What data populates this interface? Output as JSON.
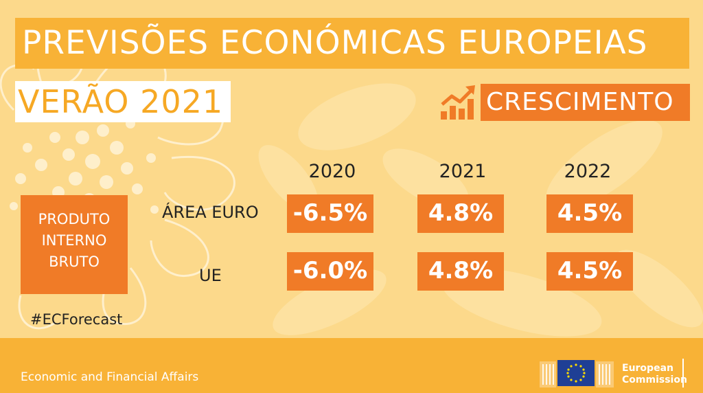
{
  "header": {
    "title": "PREVISÕES ECONÓMICAS EUROPEIAS",
    "subtitle": "VERÃO 2021",
    "tag": "CRESCIMENTO"
  },
  "table": {
    "years": [
      "2020",
      "2021",
      "2022"
    ],
    "indicator": "PRODUTO INTERNO BRUTO",
    "rows": [
      {
        "label": "ÁREA EURO",
        "values": [
          "-6.5%",
          "4.8%",
          "4.5%"
        ]
      },
      {
        "label": "UE",
        "values": [
          "-6.0%",
          "4.8%",
          "4.5%"
        ]
      }
    ]
  },
  "hashtag": "#ECForecast",
  "footer": {
    "department": "Economic and Financial Affairs",
    "logo_line1": "European",
    "logo_line2": "Commission"
  },
  "colors": {
    "background": "#fcd98b",
    "banner": "#f8b236",
    "accent": "#f07b27",
    "subtitle_text": "#f6a824"
  },
  "icons": [
    "growth-chart-icon",
    "sunflower-decoration",
    "eu-flag-icon"
  ]
}
